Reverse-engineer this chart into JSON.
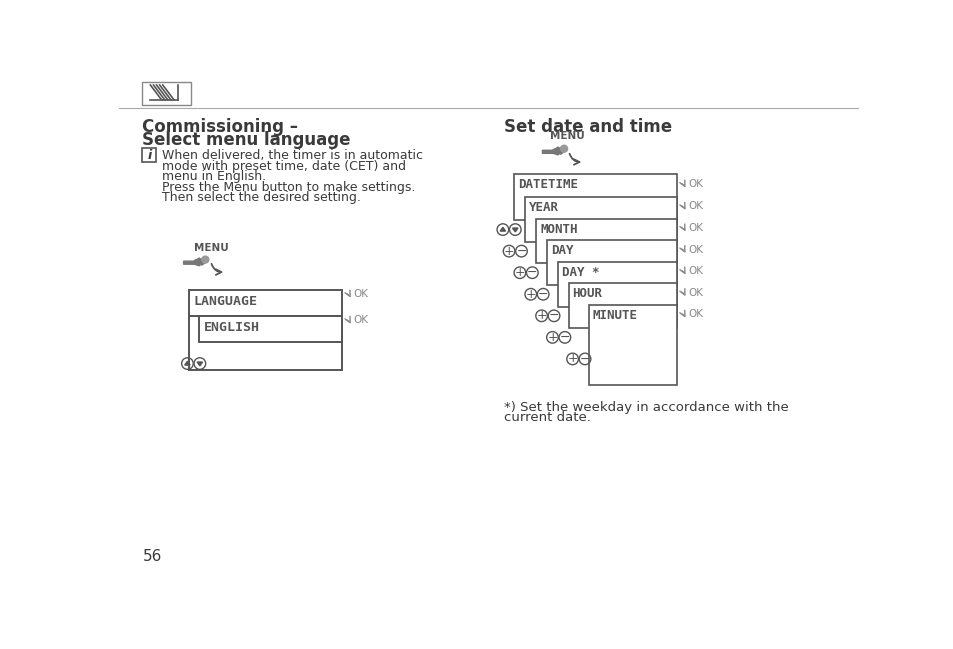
{
  "bg_color": "#ffffff",
  "page_number": "56",
  "left_title_line1": "Commissioning –",
  "left_title_line2": "Select menu language",
  "left_body_lines": [
    "When delivered, the timer is in automatic",
    "mode with preset time, date (CET) and",
    "menu in English.",
    "Press the Menu button to make settings.",
    "Then select the desired setting."
  ],
  "right_title": "Set date and time",
  "right_footnote_lines": [
    "*) Set the weekday in accordance with the",
    "current date."
  ],
  "text_color": "#3a3a3a",
  "diagram_color": "#555555",
  "ok_color": "#888888",
  "line_color": "#555555",
  "light_line_color": "#999999"
}
